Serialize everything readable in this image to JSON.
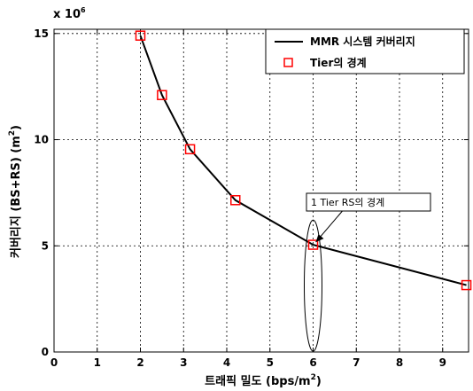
{
  "chart_data": {
    "type": "line",
    "xlabel": "트래픽 밀도 (bps/m",
    "xlabel_sup": "2",
    "xlabel_close": ")",
    "ylabel": "커버리지 (BS+RS) (m",
    "ylabel_sup": "2",
    "ylabel_close": ")",
    "y_scale_text": "x 10",
    "y_scale_exp": "6",
    "xlim": [
      0,
      9.6
    ],
    "ylim": [
      0,
      15.2
    ],
    "x_ticks": [
      0,
      1,
      2,
      3,
      4,
      5,
      6,
      7,
      8,
      9
    ],
    "x_tick_labels": [
      "0",
      "1",
      "2",
      "3",
      "4",
      "5",
      "6",
      "7",
      "8",
      "9"
    ],
    "y_ticks": [
      0,
      5,
      10,
      15
    ],
    "y_tick_labels": [
      "0",
      "5",
      "10",
      "15"
    ],
    "grid": true,
    "legend_position": "top-right",
    "series": [
      {
        "name": "MMR 시스템 커버리지",
        "style": "line",
        "color": "#000000",
        "x": [
          2.0,
          2.5,
          3.15,
          4.2,
          6.0,
          9.55
        ],
        "y": [
          14.9,
          12.1,
          9.55,
          7.15,
          5.05,
          3.15
        ]
      },
      {
        "name": "Tier의 경계",
        "style": "marker-square",
        "color": "#ff0000",
        "x": [
          2.0,
          2.5,
          3.15,
          4.2,
          6.0,
          9.55
        ],
        "y": [
          14.9,
          12.1,
          9.55,
          7.15,
          5.05,
          3.15
        ]
      }
    ],
    "annotation": {
      "text": "1 Tier RS의 경계",
      "target_x": 6.0,
      "target_y": 5.05
    }
  }
}
